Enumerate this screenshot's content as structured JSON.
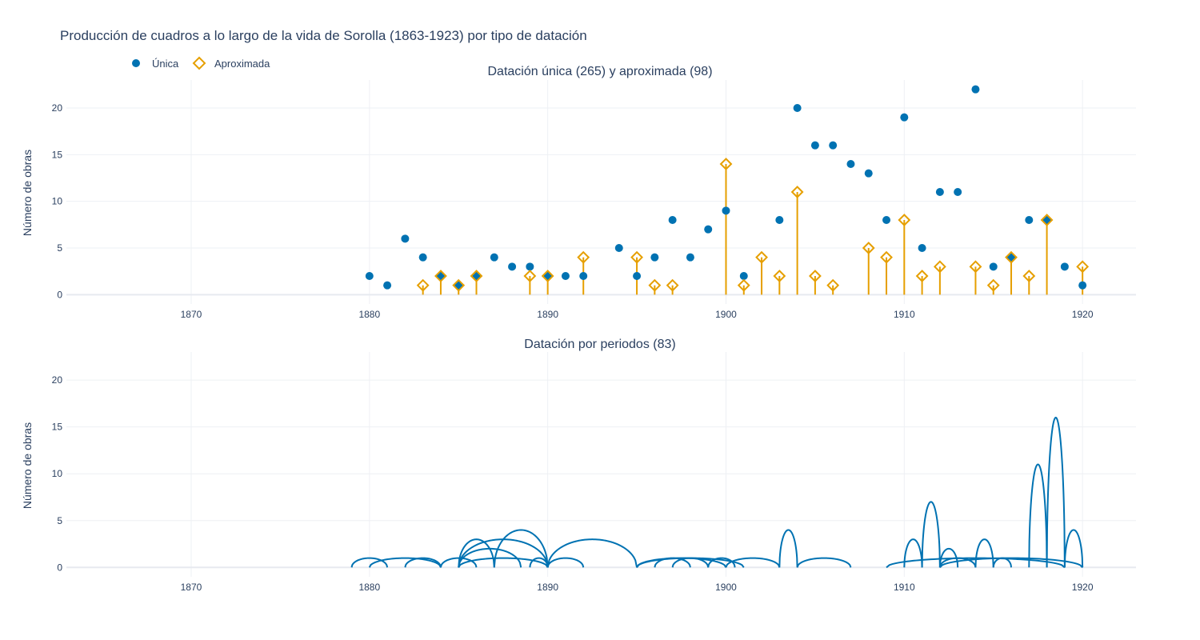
{
  "figure": {
    "title": "Producción de cuadros a lo largo de la vida de Sorolla (1863-1923) por tipo de datación",
    "colors": {
      "unica": "#0072B2",
      "aproximada": "#E69F00",
      "periodos": "#0072B2"
    }
  },
  "legend": {
    "placement": "top-left",
    "items": [
      {
        "label": "Única",
        "marker": "circle",
        "color": "#0072B2"
      },
      {
        "label": "Aproximada",
        "marker": "diamond-open",
        "color": "#E69F00"
      }
    ]
  },
  "chart_data": [
    {
      "type": "scatter",
      "title": "Datación única (265) y aproximada (98)",
      "xlabel": "",
      "ylabel": "Número de obras",
      "xlim": [
        1863,
        1923
      ],
      "ylim": [
        -1,
        23
      ],
      "xticks": [
        1870,
        1880,
        1890,
        1900,
        1910,
        1920
      ],
      "yticks": [
        0,
        5,
        10,
        15,
        20
      ],
      "grid": true,
      "series": [
        {
          "name": "Única",
          "marker": "circle",
          "points": [
            [
              1880,
              2
            ],
            [
              1881,
              1
            ],
            [
              1882,
              6
            ],
            [
              1883,
              4
            ],
            [
              1884,
              2
            ],
            [
              1885,
              1
            ],
            [
              1886,
              2
            ],
            [
              1887,
              4
            ],
            [
              1888,
              3
            ],
            [
              1889,
              3
            ],
            [
              1890,
              2
            ],
            [
              1891,
              2
            ],
            [
              1892,
              2
            ],
            [
              1894,
              5
            ],
            [
              1895,
              2
            ],
            [
              1896,
              4
            ],
            [
              1897,
              8
            ],
            [
              1898,
              4
            ],
            [
              1899,
              7
            ],
            [
              1900,
              9
            ],
            [
              1901,
              2
            ],
            [
              1903,
              8
            ],
            [
              1904,
              20
            ],
            [
              1905,
              16
            ],
            [
              1906,
              16
            ],
            [
              1907,
              14
            ],
            [
              1908,
              13
            ],
            [
              1909,
              8
            ],
            [
              1910,
              19
            ],
            [
              1911,
              5
            ],
            [
              1912,
              11
            ],
            [
              1913,
              11
            ],
            [
              1914,
              22
            ],
            [
              1915,
              3
            ],
            [
              1916,
              4
            ],
            [
              1917,
              8
            ],
            [
              1918,
              8
            ],
            [
              1919,
              3
            ],
            [
              1920,
              1
            ]
          ]
        },
        {
          "name": "Aproximada",
          "marker": "diamond-open",
          "stems": true,
          "points": [
            [
              1883,
              1
            ],
            [
              1884,
              2
            ],
            [
              1885,
              1
            ],
            [
              1886,
              2
            ],
            [
              1889,
              2
            ],
            [
              1890,
              2
            ],
            [
              1892,
              4
            ],
            [
              1895,
              4
            ],
            [
              1896,
              1
            ],
            [
              1897,
              1
            ],
            [
              1900,
              14
            ],
            [
              1901,
              1
            ],
            [
              1902,
              4
            ],
            [
              1903,
              2
            ],
            [
              1904,
              11
            ],
            [
              1905,
              2
            ],
            [
              1906,
              1
            ],
            [
              1908,
              5
            ],
            [
              1909,
              4
            ],
            [
              1910,
              8
            ],
            [
              1911,
              2
            ],
            [
              1912,
              3
            ],
            [
              1914,
              3
            ],
            [
              1915,
              1
            ],
            [
              1916,
              4
            ],
            [
              1917,
              2
            ],
            [
              1918,
              8
            ],
            [
              1920,
              3
            ]
          ]
        }
      ]
    },
    {
      "type": "line",
      "title": "Datación por periodos (83)",
      "xlabel": "",
      "ylabel": "Número de obras",
      "xlim": [
        1863,
        1923
      ],
      "ylim": [
        -1,
        23
      ],
      "xticks": [
        1870,
        1880,
        1890,
        1900,
        1910,
        1920
      ],
      "yticks": [
        0,
        5,
        10,
        15,
        20
      ],
      "grid": true,
      "arcs_description": "each arc spans a dating period [start, end] with height = number of works",
      "arcs": [
        [
          1879,
          1881,
          1
        ],
        [
          1880,
          1884,
          1
        ],
        [
          1882,
          1884,
          1
        ],
        [
          1884,
          1886,
          1
        ],
        [
          1885,
          1887,
          3
        ],
        [
          1885,
          1888.5,
          2
        ],
        [
          1885,
          1890,
          3
        ],
        [
          1885,
          1890,
          1
        ],
        [
          1887,
          1890,
          4
        ],
        [
          1889,
          1890,
          1
        ],
        [
          1890,
          1892,
          1
        ],
        [
          1890,
          1895,
          3
        ],
        [
          1895,
          1900,
          1
        ],
        [
          1895,
          1901,
          1
        ],
        [
          1896,
          1898,
          1
        ],
        [
          1897,
          1899,
          1
        ],
        [
          1899,
          1900.5,
          1
        ],
        [
          1900,
          1903,
          1
        ],
        [
          1903,
          1904,
          4
        ],
        [
          1904,
          1907,
          1
        ],
        [
          1909,
          1919,
          1
        ],
        [
          1910,
          1911,
          3
        ],
        [
          1911,
          1912,
          7
        ],
        [
          1912,
          1913,
          2
        ],
        [
          1912,
          1914,
          1
        ],
        [
          1912,
          1920,
          1
        ],
        [
          1914,
          1915,
          3
        ],
        [
          1915,
          1916,
          1
        ],
        [
          1917,
          1918,
          11
        ],
        [
          1918,
          1919,
          16
        ],
        [
          1919,
          1920,
          4
        ]
      ]
    }
  ]
}
